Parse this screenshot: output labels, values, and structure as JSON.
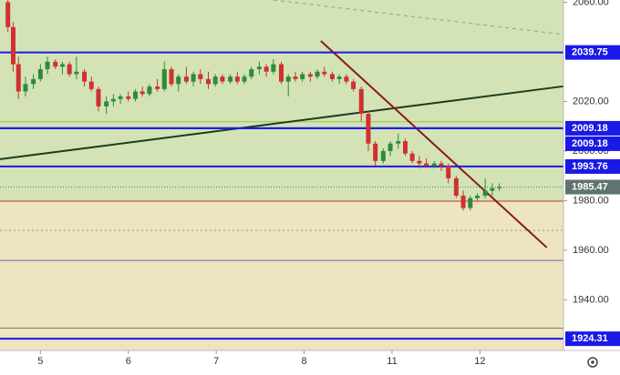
{
  "chart_data": {
    "type": "candlestick",
    "xlim": [
      -0.46,
      5.95
    ],
    "ylim": [
      1919.6,
      2060.9
    ],
    "xticks": [
      {
        "value": 0,
        "label": "5"
      },
      {
        "value": 1,
        "label": "6"
      },
      {
        "value": 2,
        "label": "7"
      },
      {
        "value": 3,
        "label": "8"
      },
      {
        "value": 4,
        "label": "11"
      },
      {
        "value": 5,
        "label": "12"
      }
    ],
    "yticks": [
      {
        "value": 2060,
        "label": "2060.00"
      },
      {
        "value": 2020,
        "label": "2020.00"
      },
      {
        "value": 2000,
        "label": "2000.00"
      },
      {
        "value": 1980,
        "label": "1980.00"
      },
      {
        "value": 1960,
        "label": "1960.00"
      },
      {
        "value": 1940,
        "label": "1940.00"
      }
    ],
    "up_color": "#2f8a3a",
    "down_color": "#d03030",
    "zones": [
      {
        "from": 1979.8,
        "to": 2060.9,
        "color": "#d3e3b5"
      },
      {
        "from": 1919.6,
        "to": 1979.8,
        "color": "#ede4c0"
      }
    ],
    "levels": [
      {
        "value": 2039.75,
        "label": "2039.75",
        "color": "#1a1ae6"
      },
      {
        "value": 2009.18,
        "label": "2009.18",
        "color": "#1a1ae6"
      },
      {
        "value": 2009.18,
        "label": "2009.18",
        "color": "#1a1ae6"
      },
      {
        "value": 1993.76,
        "label": "1993.76",
        "color": "#1a1ae6"
      },
      {
        "value": 1924.31,
        "label": "1924.31",
        "color": "#1a1ae6"
      }
    ],
    "lines": [
      {
        "value": 2011.8,
        "color": "#9cc84a"
      },
      {
        "value": 1979.8,
        "color": "#c83030"
      },
      {
        "value": 1968,
        "color": "#999999",
        "dash": true
      },
      {
        "value": 1955.9,
        "color": "#8a5ac0"
      },
      {
        "value": 1928.6,
        "color": "#777777"
      }
    ],
    "price": {
      "value": 1985.47,
      "label": "1985.47",
      "color": "#5f7470"
    },
    "trendlines": [
      {
        "x": [
          -0.46,
          5.95
        ],
        "y": [
          1996.7,
          2026.1
        ],
        "color": "#1d3b1d"
      },
      {
        "x": [
          3.19,
          5.76
        ],
        "y": [
          2044.4,
          1961.1
        ],
        "color": "#8b1a1a"
      },
      {
        "x": [
          2.65,
          5.95
        ],
        "y": [
          2060.9,
          2047
        ],
        "color": "#999999",
        "dash": true
      }
    ],
    "candles": [
      [
        -0.37,
        2060,
        2061,
        2048,
        2050
      ],
      [
        -0.31,
        2050,
        2052,
        2032,
        2035
      ],
      [
        -0.25,
        2035,
        2038,
        2021,
        2024
      ],
      [
        -0.17,
        2024,
        2030,
        2022,
        2027
      ],
      [
        -0.08,
        2027,
        2031,
        2025,
        2029
      ],
      [
        0,
        2029,
        2035,
        2028,
        2033
      ],
      [
        0.08,
        2033,
        2038,
        2031,
        2036
      ],
      [
        0.17,
        2036,
        2037,
        2033,
        2034
      ],
      [
        0.25,
        2034,
        2036,
        2031,
        2035
      ],
      [
        0.33,
        2035,
        2036,
        2030,
        2031
      ],
      [
        0.41,
        2031,
        2038,
        2029,
        2032
      ],
      [
        0.5,
        2032,
        2033,
        2026,
        2028
      ],
      [
        0.58,
        2028,
        2030,
        2024,
        2025
      ],
      [
        0.66,
        2025,
        2026,
        2016,
        2018
      ],
      [
        0.75,
        2018,
        2022,
        2015,
        2020
      ],
      [
        0.83,
        2020,
        2023,
        2018,
        2021
      ],
      [
        0.91,
        2021,
        2023,
        2019,
        2022
      ],
      [
        1.0,
        2022,
        2024,
        2020,
        2021
      ],
      [
        1.08,
        2021,
        2025,
        2020,
        2024
      ],
      [
        1.16,
        2024,
        2026,
        2022,
        2023
      ],
      [
        1.24,
        2023,
        2027,
        2022,
        2026
      ],
      [
        1.33,
        2026,
        2029,
        2024,
        2025
      ],
      [
        1.41,
        2025,
        2036,
        2024,
        2033
      ],
      [
        1.49,
        2033,
        2034,
        2026,
        2027
      ],
      [
        1.57,
        2027,
        2031,
        2024,
        2030
      ],
      [
        1.66,
        2030,
        2034,
        2027,
        2028
      ],
      [
        1.74,
        2028,
        2032,
        2026,
        2031
      ],
      [
        1.82,
        2031,
        2033,
        2027,
        2029
      ],
      [
        1.91,
        2029,
        2032,
        2025,
        2027
      ],
      [
        1.99,
        2027,
        2031,
        2026,
        2030
      ],
      [
        2.07,
        2030,
        2031,
        2027,
        2028
      ],
      [
        2.16,
        2028,
        2031,
        2027,
        2030
      ],
      [
        2.24,
        2030,
        2032,
        2027,
        2028
      ],
      [
        2.32,
        2028,
        2031,
        2027,
        2030
      ],
      [
        2.4,
        2030,
        2034,
        2029,
        2033
      ],
      [
        2.49,
        2033,
        2036,
        2031,
        2034
      ],
      [
        2.57,
        2034,
        2035,
        2030,
        2032
      ],
      [
        2.65,
        2032,
        2037,
        2031,
        2035
      ],
      [
        2.74,
        2035,
        2036,
        2027,
        2028
      ],
      [
        2.82,
        2028,
        2031,
        2022,
        2030
      ],
      [
        2.9,
        2030,
        2032,
        2028,
        2029
      ],
      [
        2.98,
        2029,
        2032,
        2028,
        2031
      ],
      [
        3.07,
        2031,
        2032,
        2028,
        2030
      ],
      [
        3.15,
        2030,
        2033,
        2029,
        2032
      ],
      [
        3.23,
        2032,
        2034,
        2030,
        2031
      ],
      [
        3.32,
        2031,
        2032,
        2028,
        2029
      ],
      [
        3.4,
        2029,
        2031,
        2027,
        2030
      ],
      [
        3.48,
        2030,
        2031,
        2027,
        2028
      ],
      [
        3.56,
        2028,
        2029,
        2024,
        2025
      ],
      [
        3.65,
        2025,
        2026,
        2012,
        2015
      ],
      [
        3.73,
        2015,
        2016,
        2000,
        2003
      ],
      [
        3.81,
        2003,
        2004,
        1994,
        1996
      ],
      [
        3.9,
        1996,
        2001,
        1995,
        2000
      ],
      [
        3.98,
        2000,
        2004,
        1998,
        2003
      ],
      [
        4.07,
        2003,
        2007,
        2001,
        2004
      ],
      [
        4.15,
        2004,
        2005,
        1998,
        1999
      ],
      [
        4.23,
        1999,
        2000,
        1995,
        1996
      ],
      [
        4.31,
        1996,
        1998,
        1993,
        1995
      ],
      [
        4.39,
        1995,
        1997,
        1993,
        1994
      ],
      [
        4.48,
        1994,
        1996,
        1993,
        1995
      ],
      [
        4.56,
        1995,
        1996,
        1992,
        1994
      ],
      [
        4.64,
        1994,
        1995,
        1987,
        1989
      ],
      [
        4.73,
        1989,
        1990,
        1981,
        1982
      ],
      [
        4.81,
        1982,
        1984,
        1976,
        1977
      ],
      [
        4.89,
        1977,
        1982,
        1976,
        1981
      ],
      [
        4.97,
        1981,
        1983,
        1980,
        1982
      ],
      [
        5.06,
        1982,
        1989,
        1981,
        1984
      ],
      [
        5.14,
        1984,
        1987,
        1982,
        1985
      ],
      [
        5.22,
        1985,
        1987,
        1984,
        1985.47
      ]
    ]
  }
}
